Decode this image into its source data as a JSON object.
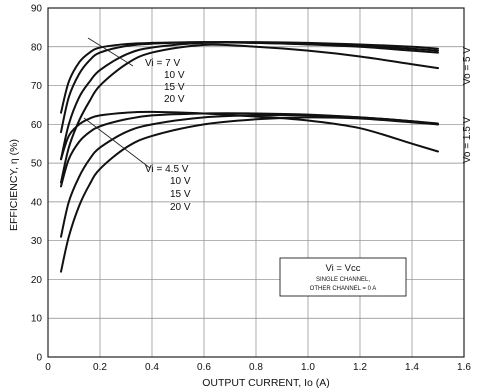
{
  "chart_data": {
    "type": "line",
    "title": "",
    "xlabel": "OUTPUT CURRENT, Io (A)",
    "ylabel": "EFFICIENCY, η (%)",
    "xlim": [
      0,
      1.6
    ],
    "ylim": [
      0,
      90
    ],
    "xticks": [
      "0",
      "0.2",
      "0.4",
      "0.6",
      "0.8",
      "1.0",
      "1.2",
      "1.4",
      "1.6"
    ],
    "yticks": [
      "0",
      "10",
      "20",
      "30",
      "40",
      "50",
      "60",
      "70",
      "80",
      "90"
    ],
    "grid": true,
    "legend_box": {
      "title": "Vi = Vcc",
      "line1": "SINGLE CHANNEL,",
      "line2": "OTHER CHANNEL = 0 A"
    },
    "annotations": {
      "group_high_label": "Vo = 5 V",
      "group_low_label": "Vo = 1.5 V",
      "high_vi_labels": [
        "Vi = 7 V",
        "10 V",
        "15 V",
        "20 V"
      ],
      "low_vi_labels": [
        "Vi = 4.5 V",
        "10 V",
        "15 V",
        "20 V"
      ]
    },
    "series": [
      {
        "name": "Vo = 5 V, Vi = 7 V",
        "x": [
          0.05,
          0.08,
          0.12,
          0.16,
          0.2,
          0.3,
          0.4,
          0.6,
          0.8,
          1.0,
          1.2,
          1.4,
          1.5
        ],
        "y": [
          63,
          71,
          76,
          78.5,
          79.8,
          80.7,
          81,
          81.2,
          81,
          80.7,
          80.2,
          79.5,
          79
        ]
      },
      {
        "name": "Vo = 5 V, Vi = 10 V",
        "x": [
          0.05,
          0.08,
          0.12,
          0.16,
          0.2,
          0.3,
          0.4,
          0.6,
          0.8,
          1.0,
          1.2,
          1.4,
          1.5
        ],
        "y": [
          58,
          67,
          73,
          76.5,
          78.5,
          80.2,
          80.8,
          81.2,
          81.2,
          81,
          80.6,
          80,
          79.5
        ]
      },
      {
        "name": "Vo = 5 V, Vi = 15 V",
        "x": [
          0.05,
          0.08,
          0.12,
          0.16,
          0.2,
          0.3,
          0.4,
          0.6,
          0.8,
          1.0,
          1.2,
          1.4,
          1.5
        ],
        "y": [
          51,
          60,
          67,
          71,
          74,
          78,
          79.8,
          81,
          81,
          80.6,
          80,
          79,
          78.5
        ]
      },
      {
        "name": "Vo = 5 V, Vi = 20 V",
        "x": [
          0.05,
          0.08,
          0.12,
          0.16,
          0.2,
          0.3,
          0.4,
          0.6,
          0.8,
          1.0,
          1.2,
          1.4,
          1.5
        ],
        "y": [
          45,
          54,
          61,
          66,
          70,
          75.5,
          78.5,
          80.5,
          80,
          79,
          77.5,
          75.5,
          74.5
        ]
      },
      {
        "name": "Vo = 1.5 V, Vi = 4.5 V",
        "x": [
          0.05,
          0.08,
          0.12,
          0.16,
          0.2,
          0.3,
          0.4,
          0.6,
          0.8,
          1.0,
          1.2,
          1.4,
          1.5
        ],
        "y": [
          51,
          57,
          60,
          61.5,
          62.3,
          63,
          63.2,
          62.8,
          62,
          61,
          59,
          55,
          53
        ]
      },
      {
        "name": "Vo = 1.5 V, Vi = 10 V",
        "x": [
          0.05,
          0.08,
          0.12,
          0.16,
          0.2,
          0.3,
          0.4,
          0.6,
          0.8,
          1.0,
          1.2,
          1.4,
          1.5
        ],
        "y": [
          44,
          51,
          55.5,
          58,
          59.5,
          61.3,
          62.3,
          62.8,
          62.8,
          62.5,
          61.8,
          60.8,
          60
        ]
      },
      {
        "name": "Vo = 1.5 V, Vi = 15 V",
        "x": [
          0.05,
          0.08,
          0.12,
          0.16,
          0.2,
          0.3,
          0.4,
          0.6,
          0.8,
          1.0,
          1.2,
          1.4,
          1.5
        ],
        "y": [
          31,
          40,
          46.5,
          51,
          54,
          58,
          60,
          61.8,
          62.3,
          62.3,
          61.8,
          60.8,
          60.2
        ]
      },
      {
        "name": "Vo = 1.5 V, Vi = 20 V",
        "x": [
          0.05,
          0.08,
          0.12,
          0.16,
          0.2,
          0.3,
          0.4,
          0.6,
          0.8,
          1.0,
          1.2,
          1.4,
          1.5
        ],
        "y": [
          22,
          31,
          39,
          44.5,
          48.5,
          54,
          57,
          60,
          61.3,
          61.8,
          61.5,
          60.5,
          60
        ]
      }
    ]
  }
}
